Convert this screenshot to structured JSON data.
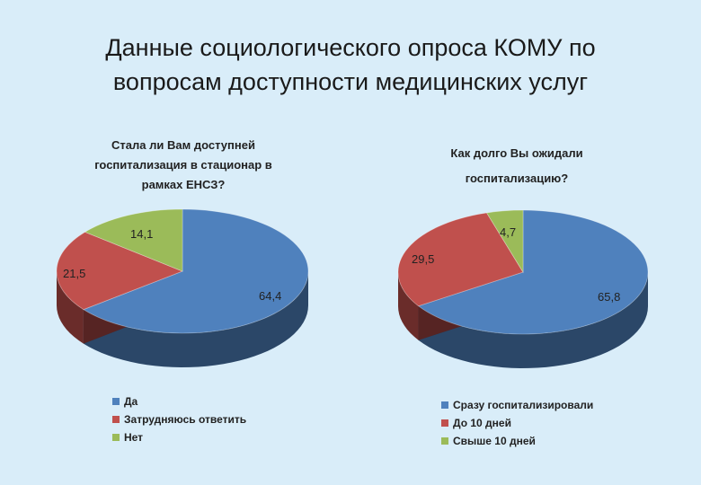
{
  "slide": {
    "title_line1": "Данные социологического опроса КОМУ по",
    "title_line2": "вопросам доступности медицинских услуг"
  },
  "chart_data": [
    {
      "type": "pie",
      "title_lines": [
        "Стала ли Вам доступней",
        "госпитализация в стационар в",
        "рамках ЕНСЗ?"
      ],
      "categories": [
        "Да",
        "Затрудняюсь ответить",
        "Нет"
      ],
      "values": [
        64.4,
        21.5,
        14.1
      ],
      "value_labels": [
        "64,4",
        "21,5",
        "14,1"
      ],
      "colors": [
        "#4f81bd",
        "#c0504d",
        "#9bbb59"
      ],
      "legend_position": "bottom-left"
    },
    {
      "type": "pie",
      "title_lines": [
        "Как долго Вы ожидали",
        "госпитализацию?"
      ],
      "categories": [
        "Сразу госпитализировали",
        "До 10 дней",
        "Свыше 10 дней"
      ],
      "values": [
        65.8,
        29.5,
        4.7
      ],
      "value_labels": [
        "65,8",
        "29,5",
        "4,7"
      ],
      "colors": [
        "#4f81bd",
        "#c0504d",
        "#9bbb59"
      ],
      "legend_position": "bottom-left"
    }
  ]
}
